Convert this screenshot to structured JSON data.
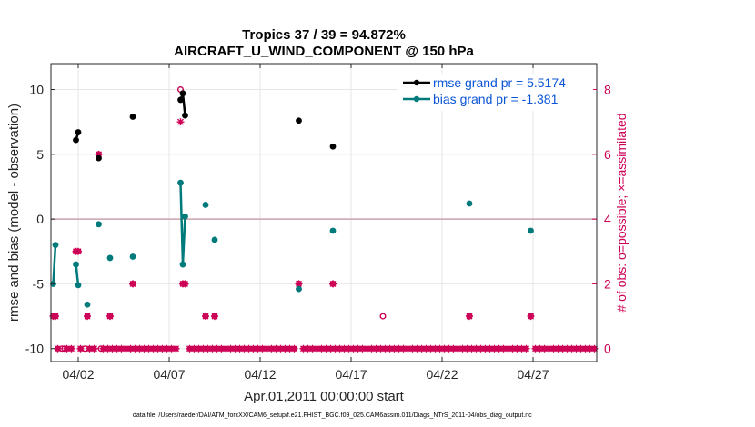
{
  "title_line1": "Tropics 37 / 39 = 94.872%",
  "title_line2": "AIRCRAFT_U_WIND_COMPONENT @ 150 hPa",
  "footer": "data file: /Users/raeder/DAI/ATM_forcXX/CAM6_setup/f.e21.FHIST_BGC.f09_025.CAM6assim.011/Diags_NTrS_2011-04/obs_diag_output.nc",
  "chart_data": {
    "type": "line",
    "xlabel": "Apr.01,2011 00:00:00 start",
    "ylabel": "rmse and bias (model - observation)",
    "y2label": "# of obs: o=possible; ×=assimilated",
    "xlim": [
      0.5,
      30.5
    ],
    "ylim": [
      -11,
      12
    ],
    "y2lim": [
      -0.4,
      8.8
    ],
    "x_ticks": [
      2,
      7,
      12,
      17,
      22,
      27
    ],
    "x_tick_labels": [
      "04/02",
      "04/07",
      "04/12",
      "04/17",
      "04/22",
      "04/27"
    ],
    "y_ticks": [
      -10,
      -5,
      0,
      5,
      10
    ],
    "y_tick_labels": [
      "-10",
      "-5",
      "0",
      "5",
      "10"
    ],
    "y2_ticks": [
      0,
      2,
      4,
      6,
      8
    ],
    "y2_tick_labels": [
      "0",
      "2",
      "4",
      "6",
      "8"
    ],
    "grid": true,
    "legend_position": "top-right",
    "zero_line": 0,
    "colors": {
      "rmse": "#000000",
      "bias": "#007a7a",
      "obs": "#cc0055",
      "zero": "#c9a0ac",
      "legend_text": "#0b55d6",
      "grid": "#e6e6e6"
    },
    "series": [
      {
        "name": "rmse grand pr = 5.5174",
        "segments": [
          [
            [
              1.875,
              6.1
            ],
            [
              2.0,
              6.7
            ]
          ],
          [
            [
              3.125,
              4.7
            ]
          ],
          [
            [
              5.0,
              7.9
            ]
          ],
          [
            [
              7.625,
              9.2
            ],
            [
              7.75,
              9.7
            ],
            [
              7.875,
              8.0
            ]
          ],
          [
            [
              14.125,
              7.6
            ]
          ],
          [
            [
              16.0,
              5.6
            ]
          ]
        ]
      },
      {
        "name": "bias grand pr = -1.381",
        "segments": [
          [
            [
              0.625,
              -5.0
            ],
            [
              0.75,
              -2.0
            ]
          ],
          [
            [
              1.875,
              -3.5
            ],
            [
              2.0,
              -5.1
            ]
          ],
          [
            [
              2.5,
              -6.6
            ]
          ],
          [
            [
              3.125,
              -0.4
            ]
          ],
          [
            [
              3.75,
              -3.0
            ]
          ],
          [
            [
              5.0,
              -2.9
            ]
          ],
          [
            [
              7.625,
              2.8
            ],
            [
              7.75,
              -3.5
            ],
            [
              7.875,
              0.2
            ]
          ],
          [
            [
              9.0,
              1.1
            ]
          ],
          [
            [
              9.5,
              -1.6
            ]
          ],
          [
            [
              14.125,
              -5.4
            ]
          ],
          [
            [
              16.0,
              -0.9
            ]
          ],
          [
            [
              23.5,
              1.2
            ]
          ],
          [
            [
              26.875,
              -0.9
            ]
          ]
        ]
      }
    ],
    "obs_possible": [
      [
        0.625,
        1
      ],
      [
        0.75,
        1
      ],
      [
        1.125,
        0
      ],
      [
        1.25,
        0
      ],
      [
        1.875,
        3
      ],
      [
        2.0,
        3
      ],
      [
        2.375,
        0
      ],
      [
        2.5,
        1
      ],
      [
        3.125,
        6
      ],
      [
        3.25,
        0
      ],
      [
        3.75,
        1
      ],
      [
        5.0,
        2
      ],
      [
        7.625,
        8
      ],
      [
        7.75,
        2
      ],
      [
        7.875,
        2
      ],
      [
        9.0,
        1
      ],
      [
        9.5,
        1
      ],
      [
        14.125,
        2
      ],
      [
        16.0,
        2
      ],
      [
        18.75,
        1
      ],
      [
        23.5,
        1
      ],
      [
        26.875,
        1
      ]
    ],
    "obs_assimilated": [
      [
        0.625,
        1
      ],
      [
        0.75,
        1
      ],
      [
        1.875,
        3
      ],
      [
        2.0,
        3
      ],
      [
        2.5,
        1
      ],
      [
        3.125,
        6
      ],
      [
        3.75,
        1
      ],
      [
        5.0,
        2
      ],
      [
        7.625,
        7
      ],
      [
        7.75,
        2
      ],
      [
        7.875,
        2
      ],
      [
        9.0,
        1
      ],
      [
        9.5,
        1
      ],
      [
        14.125,
        2
      ],
      [
        16.0,
        2
      ],
      [
        23.5,
        1
      ],
      [
        26.875,
        1
      ]
    ]
  }
}
